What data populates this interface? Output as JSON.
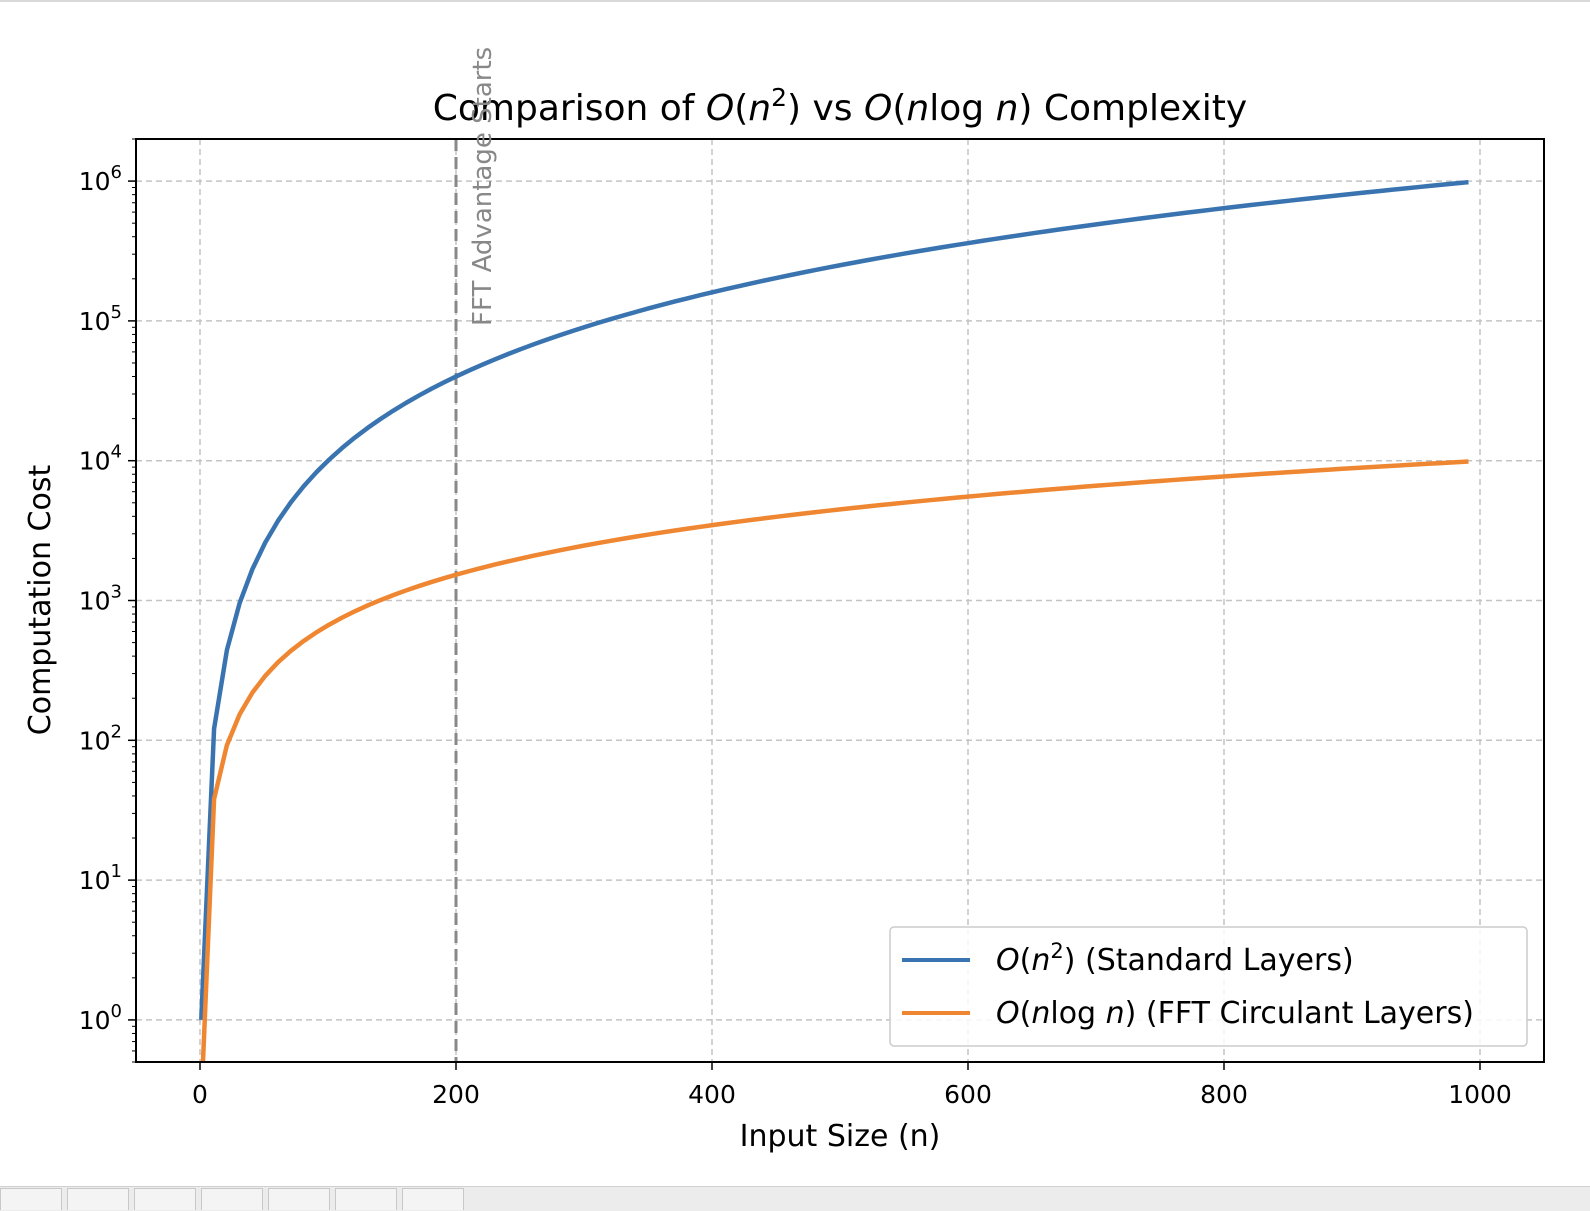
{
  "chart_data": {
    "type": "line",
    "title": "Comparison of O(n²) vs O(n log n) Complexity",
    "title_parts": {
      "a": "Comparison of ",
      "o1": "O",
      "p1": "(",
      "n1": "n",
      "sup": "2",
      "p2": ")",
      "vs": " vs ",
      "o2": "O",
      "p3": "(",
      "n2": "n",
      "log": "log",
      "n3": "n",
      "p4": ")",
      "rest": " Complexity"
    },
    "xlabel": "Input Size (n)",
    "ylabel": "Computation Cost",
    "xlim": [
      -50,
      1050
    ],
    "ylim": [
      0.5,
      2000000
    ],
    "yscale": "log",
    "grid": true,
    "x_ticks": [
      "0",
      "200",
      "400",
      "600",
      "800",
      "1000"
    ],
    "y_ticks": [
      {
        "base": "10",
        "exp": "0"
      },
      {
        "base": "10",
        "exp": "1"
      },
      {
        "base": "10",
        "exp": "2"
      },
      {
        "base": "10",
        "exp": "3"
      },
      {
        "base": "10",
        "exp": "4"
      },
      {
        "base": "10",
        "exp": "5"
      },
      {
        "base": "10",
        "exp": "6"
      }
    ],
    "x_range": {
      "start": 1,
      "end": 991,
      "step": 10
    },
    "series": [
      {
        "name": "O(n²) (Standard Layers)",
        "formula": "n^2",
        "color": "#3a74b0",
        "legend_parts": {
          "o": "O",
          "p1": "(",
          "n": "n",
          "sup": "2",
          "p2": ")",
          "rest": " (Standard Layers)"
        }
      },
      {
        "name": "O(n log n) (FFT Circulant Layers)",
        "formula": "n*log2(n)",
        "color": "#ef8732",
        "legend_parts": {
          "o": "O",
          "p1": "(",
          "n1": "n",
          "log": "log",
          "n2": "n",
          "p2": ")",
          "rest": " (FFT Circulant Layers)"
        }
      }
    ],
    "annotation": {
      "text": "FFT Advantage Starts",
      "x": 200,
      "color": "#888888"
    },
    "legend_position": "lower-right"
  }
}
